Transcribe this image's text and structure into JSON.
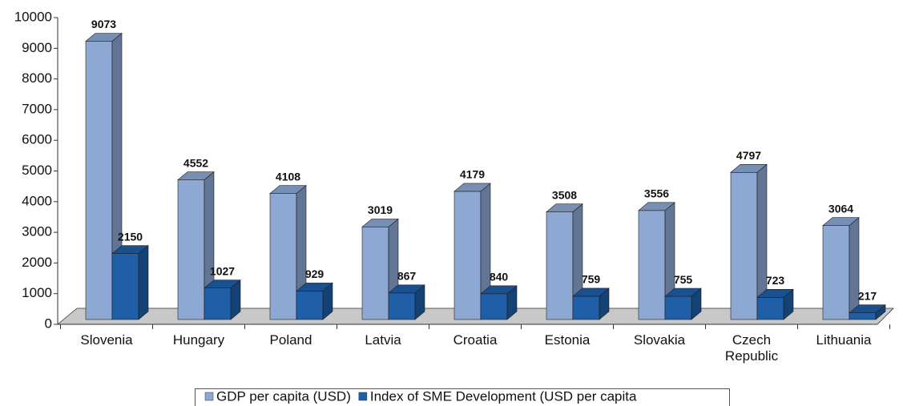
{
  "chart_data": {
    "type": "bar3d",
    "categories": [
      "Slovenia",
      "Hungary",
      "Poland",
      "Latvia",
      "Croatia",
      "Estonia",
      "Slovakia",
      "Czech Republic",
      "Lithuania"
    ],
    "series": [
      {
        "name": "GDP per capita (USD)",
        "color": "#8ea8d4",
        "values": [
          9073,
          4552,
          4108,
          3019,
          4179,
          3508,
          3556,
          4797,
          3064
        ]
      },
      {
        "name": "Index of SME Development (USD per capita",
        "color": "#1f5fa8",
        "values": [
          2150,
          1027,
          929,
          867,
          840,
          759,
          755,
          723,
          217
        ]
      }
    ],
    "ylim": [
      0,
      10000
    ],
    "yticks": [
      0,
      1000,
      2000,
      3000,
      4000,
      5000,
      6000,
      7000,
      8000,
      9000,
      10000
    ],
    "legend": "bottom"
  }
}
